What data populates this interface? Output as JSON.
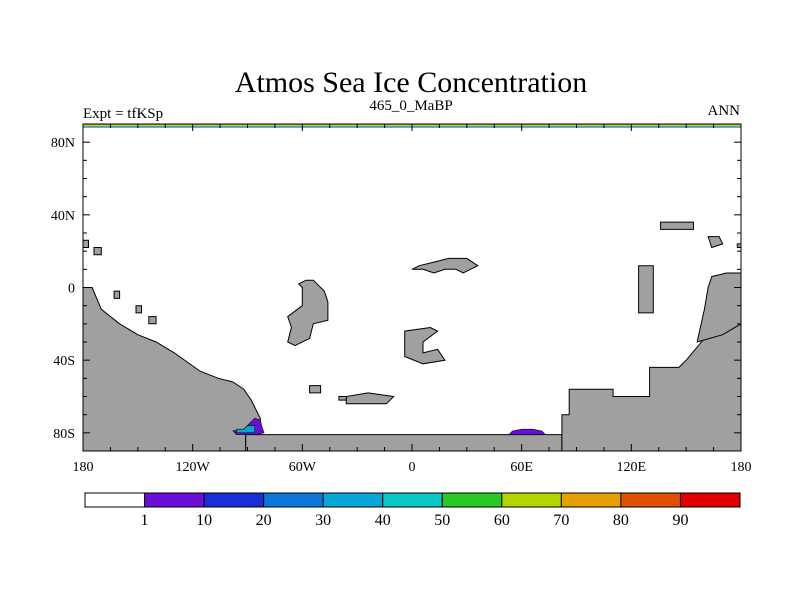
{
  "chart_data": {
    "type": "heatmap",
    "title": "Atmos Sea Ice Concentration",
    "subtitle_left": "Expt = tfKSp",
    "subtitle_center": "465_0_MaBP",
    "subtitle_right": "ANN",
    "xlabel": "",
    "ylabel": "",
    "xlim": [
      -180,
      180
    ],
    "ylim": [
      -90,
      90
    ],
    "x_ticks": [
      {
        "value": -180,
        "label": "180"
      },
      {
        "value": -120,
        "label": "120W"
      },
      {
        "value": -60,
        "label": "60W"
      },
      {
        "value": 0,
        "label": "0"
      },
      {
        "value": 60,
        "label": "60E"
      },
      {
        "value": 120,
        "label": "120E"
      },
      {
        "value": 180,
        "label": "180"
      }
    ],
    "y_ticks": [
      {
        "value": 80,
        "label": "80N"
      },
      {
        "value": 40,
        "label": "40N"
      },
      {
        "value": 0,
        "label": "0"
      },
      {
        "value": -40,
        "label": "40S"
      },
      {
        "value": -80,
        "label": "80S"
      }
    ],
    "colorbar": {
      "levels": [
        1,
        10,
        20,
        30,
        40,
        50,
        60,
        70,
        80,
        90
      ],
      "labels": [
        "1",
        "10",
        "20",
        "30",
        "40",
        "50",
        "60",
        "70",
        "80",
        "90"
      ],
      "colors": [
        "#ffffff",
        "#6a0fd8",
        "#1a2ed8",
        "#0a78d8",
        "#08a6d8",
        "#0ac8c8",
        "#28c828",
        "#b4d400",
        "#e6a000",
        "#e05000",
        "#e00000"
      ]
    },
    "land_color": "#a0a0a0",
    "north_pole_band": {
      "lat_min": 88,
      "lat_max": 90,
      "colors": [
        "#e6a000",
        "#b4d400",
        "#0a78d8"
      ]
    },
    "ice_regions": [
      {
        "name": "antarctic-peninsula-ice",
        "points": [
          [
            -86,
            -72
          ],
          [
            -83,
            -73
          ],
          [
            -82,
            -77
          ],
          [
            -81,
            -80
          ],
          [
            -85,
            -81
          ],
          [
            -96,
            -81
          ],
          [
            -98,
            -79
          ],
          [
            -92,
            -78
          ],
          [
            -88,
            -74
          ]
        ],
        "level_index": 1
      },
      {
        "name": "antarctic-peninsula-ice-inner",
        "points": [
          [
            -90,
            -76
          ],
          [
            -86,
            -76
          ],
          [
            -86,
            -80
          ],
          [
            -96,
            -80
          ],
          [
            -96,
            -78
          ],
          [
            -92,
            -78
          ]
        ],
        "level_index": 4
      },
      {
        "name": "east-antarctic-ice",
        "points": [
          [
            53,
            -81
          ],
          [
            55,
            -79
          ],
          [
            60,
            -78
          ],
          [
            66,
            -78
          ],
          [
            71,
            -79
          ],
          [
            73,
            -81
          ]
        ],
        "level_index": 1
      }
    ],
    "land_regions": [
      {
        "name": "south-america-antarctica",
        "points": [
          [
            -180,
            0
          ],
          [
            -180,
            -90
          ],
          [
            -180,
            -90
          ],
          [
            -91,
            -90
          ],
          [
            -91,
            -81
          ],
          [
            -86,
            -81
          ],
          [
            -83,
            -78
          ],
          [
            -83,
            -72
          ],
          [
            -85,
            -68
          ],
          [
            -88,
            -62
          ],
          [
            -92,
            -56
          ],
          [
            -98,
            -52
          ],
          [
            -106,
            -50
          ],
          [
            -116,
            -46
          ],
          [
            -130,
            -36
          ],
          [
            -140,
            -30
          ],
          [
            -150,
            -26
          ],
          [
            -160,
            -20
          ],
          [
            -170,
            -12
          ],
          [
            -175,
            0
          ]
        ]
      },
      {
        "name": "antarctic-shelf",
        "points": [
          [
            -91,
            -81
          ],
          [
            82,
            -81
          ],
          [
            82,
            -90
          ],
          [
            -91,
            -90
          ]
        ]
      },
      {
        "name": "gondwana-east",
        "points": [
          [
            82,
            -81
          ],
          [
            82,
            -70
          ],
          [
            86,
            -70
          ],
          [
            86,
            -56
          ],
          [
            110,
            -56
          ],
          [
            110,
            -60
          ],
          [
            130,
            -60
          ],
          [
            130,
            -44
          ],
          [
            146,
            -44
          ],
          [
            150,
            -40
          ],
          [
            160,
            -28
          ],
          [
            165,
            -18
          ],
          [
            170,
            -10
          ],
          [
            172,
            -6
          ],
          [
            180,
            -6
          ],
          [
            180,
            -90
          ],
          [
            82,
            -90
          ]
        ]
      },
      {
        "name": "australia-block",
        "points": [
          [
            156,
            -30
          ],
          [
            160,
            -12
          ],
          [
            162,
            0
          ],
          [
            164,
            6
          ],
          [
            172,
            8
          ],
          [
            180,
            8
          ],
          [
            180,
            -20
          ],
          [
            170,
            -26
          ]
        ]
      },
      {
        "name": "laurentia",
        "points": [
          [
            -62,
            2
          ],
          [
            -60,
            0
          ],
          [
            -60,
            -10
          ],
          [
            -68,
            -16
          ],
          [
            -66,
            -22
          ],
          [
            -68,
            -30
          ],
          [
            -64,
            -32
          ],
          [
            -56,
            -28
          ],
          [
            -54,
            -20
          ],
          [
            -46,
            -18
          ],
          [
            -46,
            -8
          ],
          [
            -48,
            -2
          ],
          [
            -54,
            4
          ],
          [
            -58,
            4
          ]
        ]
      },
      {
        "name": "baltica",
        "points": [
          [
            0,
            10
          ],
          [
            4,
            12
          ],
          [
            12,
            14
          ],
          [
            20,
            16
          ],
          [
            30,
            16
          ],
          [
            36,
            12
          ],
          [
            32,
            10
          ],
          [
            28,
            8
          ],
          [
            24,
            10
          ],
          [
            18,
            10
          ],
          [
            12,
            8
          ],
          [
            6,
            10
          ]
        ]
      },
      {
        "name": "siberia",
        "points": [
          [
            -4,
            -24
          ],
          [
            -4,
            -38
          ],
          [
            6,
            -42
          ],
          [
            18,
            -40
          ],
          [
            14,
            -34
          ],
          [
            6,
            -36
          ],
          [
            6,
            -30
          ],
          [
            14,
            -24
          ],
          [
            10,
            -22
          ]
        ]
      },
      {
        "name": "south-china",
        "points": [
          [
            -36,
            -60
          ],
          [
            -36,
            -64
          ],
          [
            -14,
            -64
          ],
          [
            -10,
            -60
          ],
          [
            -24,
            -58
          ]
        ]
      },
      {
        "name": "small-island-north",
        "points": [
          [
            136,
            36
          ],
          [
            136,
            32
          ],
          [
            154,
            32
          ],
          [
            154,
            36
          ]
        ]
      },
      {
        "name": "north-china",
        "points": [
          [
            124,
            12
          ],
          [
            124,
            -14
          ],
          [
            132,
            -14
          ],
          [
            132,
            12
          ]
        ]
      },
      {
        "name": "small-island-east",
        "points": [
          [
            162,
            28
          ],
          [
            164,
            22
          ],
          [
            170,
            24
          ],
          [
            168,
            28
          ]
        ]
      },
      {
        "name": "small-island-west-a",
        "points": [
          [
            -180,
            26
          ],
          [
            -180,
            22
          ],
          [
            -177,
            22
          ],
          [
            -177,
            26
          ]
        ]
      },
      {
        "name": "small-island-west-b",
        "points": [
          [
            -174,
            22
          ],
          [
            -174,
            18
          ],
          [
            -170,
            18
          ],
          [
            -170,
            22
          ]
        ]
      },
      {
        "name": "small-island-west-c",
        "points": [
          [
            -163,
            -2
          ],
          [
            -163,
            -6
          ],
          [
            -160,
            -6
          ],
          [
            -160,
            -2
          ]
        ]
      },
      {
        "name": "small-island-west-d",
        "points": [
          [
            -151,
            -10
          ],
          [
            -151,
            -14
          ],
          [
            -148,
            -14
          ],
          [
            -148,
            -10
          ]
        ]
      },
      {
        "name": "small-island-west-e",
        "points": [
          [
            -144,
            -16
          ],
          [
            -144,
            -20
          ],
          [
            -140,
            -20
          ],
          [
            -140,
            -16
          ]
        ]
      },
      {
        "name": "small-island-sa",
        "points": [
          [
            -56,
            -54
          ],
          [
            -56,
            -58
          ],
          [
            -50,
            -58
          ],
          [
            -50,
            -54
          ]
        ]
      },
      {
        "name": "small-island-sb",
        "points": [
          [
            -40,
            -60
          ],
          [
            -40,
            -62
          ],
          [
            -36,
            -62
          ],
          [
            -36,
            -60
          ]
        ]
      },
      {
        "name": "small-island-east-b",
        "points": [
          [
            178,
            24
          ],
          [
            178,
            22
          ],
          [
            180,
            22
          ],
          [
            180,
            24
          ]
        ]
      }
    ]
  }
}
